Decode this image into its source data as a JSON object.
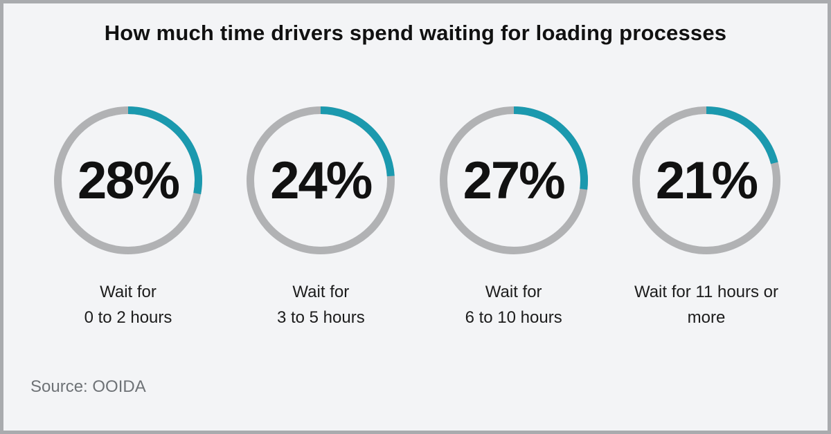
{
  "title": "How much time drivers spend waiting for loading processes",
  "source_note": "Source: OOIDA",
  "colors": {
    "background": "#f3f4f6",
    "border": "#a9abae",
    "ring_track_gray": "#b1b2b4",
    "ring_fill_teal": "#1b99ae",
    "text_black": "#111111",
    "source_gray": "#6e7276"
  },
  "chart_data": {
    "type": "donut",
    "title": "How much time drivers spend waiting for loading processes",
    "unit": "percent",
    "arc_start": "top",
    "arc_direction": "clockwise",
    "legend": false,
    "categories": [
      "Wait for 0 to 2 hours",
      "Wait for 3 to 5 hours",
      "Wait for 6 to 10 hours",
      "Wait for 11 hours or more"
    ],
    "values": [
      28,
      24,
      27,
      21
    ],
    "items": [
      {
        "percent": 28,
        "value_label": "28%",
        "label_lines": [
          "Wait for",
          "0 to 2 hours"
        ]
      },
      {
        "percent": 24,
        "value_label": "24%",
        "label_lines": [
          "Wait for",
          "3 to 5 hours"
        ]
      },
      {
        "percent": 27,
        "value_label": "27%",
        "label_lines": [
          "Wait for",
          "6 to 10 hours"
        ]
      },
      {
        "percent": 21,
        "value_label": "21%",
        "label_lines": [
          "Wait for 11 hours or",
          "more"
        ]
      }
    ],
    "source": "OOIDA"
  }
}
